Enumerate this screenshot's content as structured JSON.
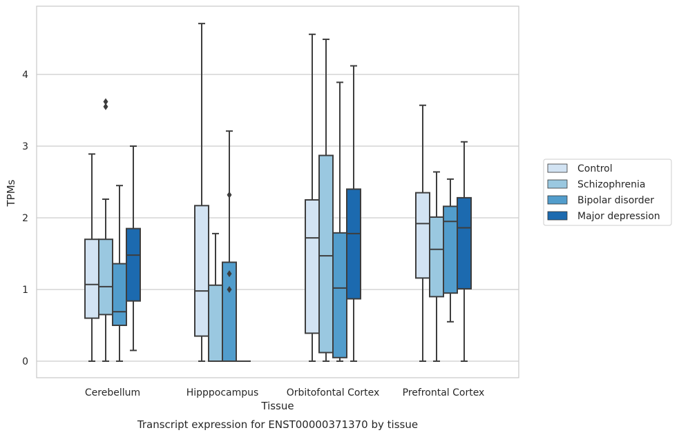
{
  "chart_data": {
    "type": "box",
    "title": "",
    "caption": "Transcript expression for ENST00000371370 by tissue",
    "xlabel": "Tissue",
    "ylabel": "TPMs",
    "ylim": [
      -0.22,
      4.95
    ],
    "yticks": [
      "0",
      "1",
      "2",
      "3",
      "4"
    ],
    "grid": "horizontal",
    "legend_position": "right",
    "categories": [
      "Cerebellum",
      "Hipppocampus",
      "Orbitofontal Cortex",
      "Prefrontal Cortex"
    ],
    "series": [
      {
        "name": "Control",
        "color": "#d2e3f3",
        "boxes": [
          {
            "whislo": 0.0,
            "q1": 0.6,
            "med": 1.07,
            "q3": 1.7,
            "whishi": 2.89,
            "fliers": []
          },
          {
            "whislo": 0.0,
            "q1": 0.35,
            "med": 0.98,
            "q3": 2.17,
            "whishi": 4.71,
            "fliers": []
          },
          {
            "whislo": 0.0,
            "q1": 0.39,
            "med": 1.72,
            "q3": 2.25,
            "whishi": 4.56,
            "fliers": []
          },
          {
            "whislo": 0.0,
            "q1": 1.16,
            "med": 1.92,
            "q3": 2.35,
            "whishi": 3.57,
            "fliers": []
          }
        ]
      },
      {
        "name": "Schizophrenia",
        "color": "#9ac8e0",
        "boxes": [
          {
            "whislo": 0.0,
            "q1": 0.65,
            "med": 1.04,
            "q3": 1.7,
            "whishi": 2.26,
            "fliers": [
              3.55,
              3.62
            ]
          },
          {
            "whislo": 0.0,
            "q1": 0.0,
            "med": 0.0,
            "q3": 1.06,
            "whishi": 1.78,
            "fliers": []
          },
          {
            "whislo": 0.0,
            "q1": 0.12,
            "med": 1.47,
            "q3": 2.87,
            "whishi": 4.49,
            "fliers": []
          },
          {
            "whislo": 0.0,
            "q1": 0.9,
            "med": 1.56,
            "q3": 2.01,
            "whishi": 2.64,
            "fliers": []
          }
        ]
      },
      {
        "name": "Bipolar disorder",
        "color": "#529dcc",
        "boxes": [
          {
            "whislo": 0.0,
            "q1": 0.5,
            "med": 0.69,
            "q3": 1.36,
            "whishi": 2.45,
            "fliers": []
          },
          {
            "whislo": 0.0,
            "q1": 0.0,
            "med": 0.0,
            "q3": 1.38,
            "whishi": 3.21,
            "fliers": [
              1.0,
              1.22,
              2.32
            ]
          },
          {
            "whislo": 0.0,
            "q1": 0.05,
            "med": 1.02,
            "q3": 1.79,
            "whishi": 3.89,
            "fliers": []
          },
          {
            "whislo": 0.55,
            "q1": 0.95,
            "med": 1.95,
            "q3": 2.16,
            "whishi": 2.54,
            "fliers": []
          }
        ]
      },
      {
        "name": "Major depression",
        "color": "#1c6aaf",
        "boxes": [
          {
            "whislo": 0.15,
            "q1": 0.84,
            "med": 1.48,
            "q3": 1.85,
            "whishi": 3.0,
            "fliers": []
          },
          {
            "whislo": 0.0,
            "q1": 0.0,
            "med": 0.0,
            "q3": 0.0,
            "whishi": 0.0,
            "fliers": []
          },
          {
            "whislo": 0.0,
            "q1": 0.87,
            "med": 1.78,
            "q3": 2.4,
            "whishi": 4.12,
            "fliers": []
          },
          {
            "whislo": 0.0,
            "q1": 1.01,
            "med": 1.86,
            "q3": 2.28,
            "whishi": 3.06,
            "fliers": []
          }
        ]
      }
    ]
  }
}
